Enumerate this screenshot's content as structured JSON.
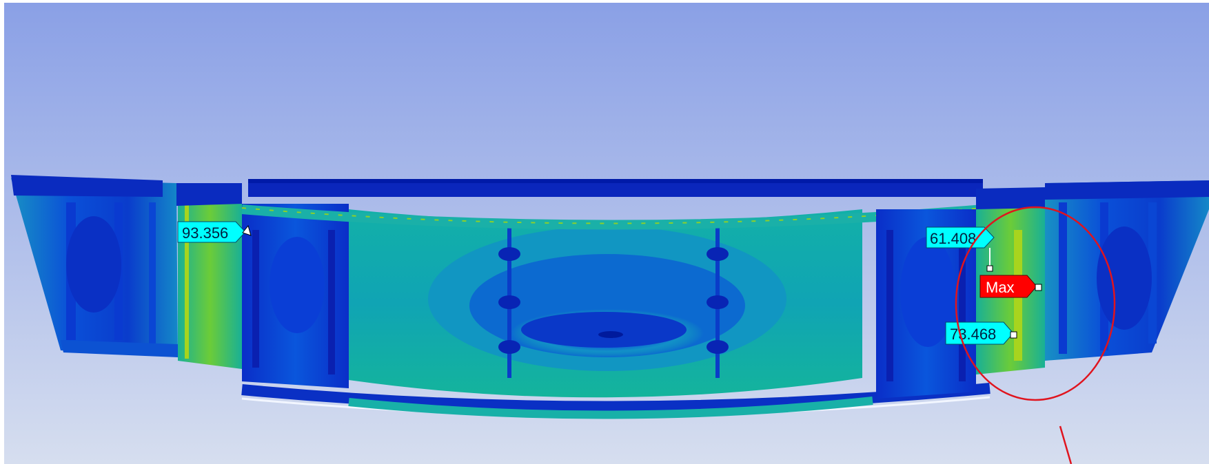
{
  "viewport": {
    "background_top": "#8aa0e6",
    "background_bottom": "#d6deef"
  },
  "probes": [
    {
      "label": "93.356",
      "kind": "value",
      "color": "#00ffff"
    },
    {
      "label": "61.408",
      "kind": "value",
      "color": "#00ffff"
    },
    {
      "label": "Max",
      "kind": "max",
      "color": "#ff0000"
    },
    {
      "label": "73.468",
      "kind": "value",
      "color": "#00ffff"
    }
  ],
  "annotation": {
    "circle_color": "#e0141e",
    "pointer_color": "#e0141e"
  },
  "contour_colors": {
    "low": "#0018b8",
    "mid_low": "#0a55e0",
    "mid": "#12a6b8",
    "mid_high": "#20c48a",
    "high": "#9ad420",
    "max": "#ff2000"
  }
}
